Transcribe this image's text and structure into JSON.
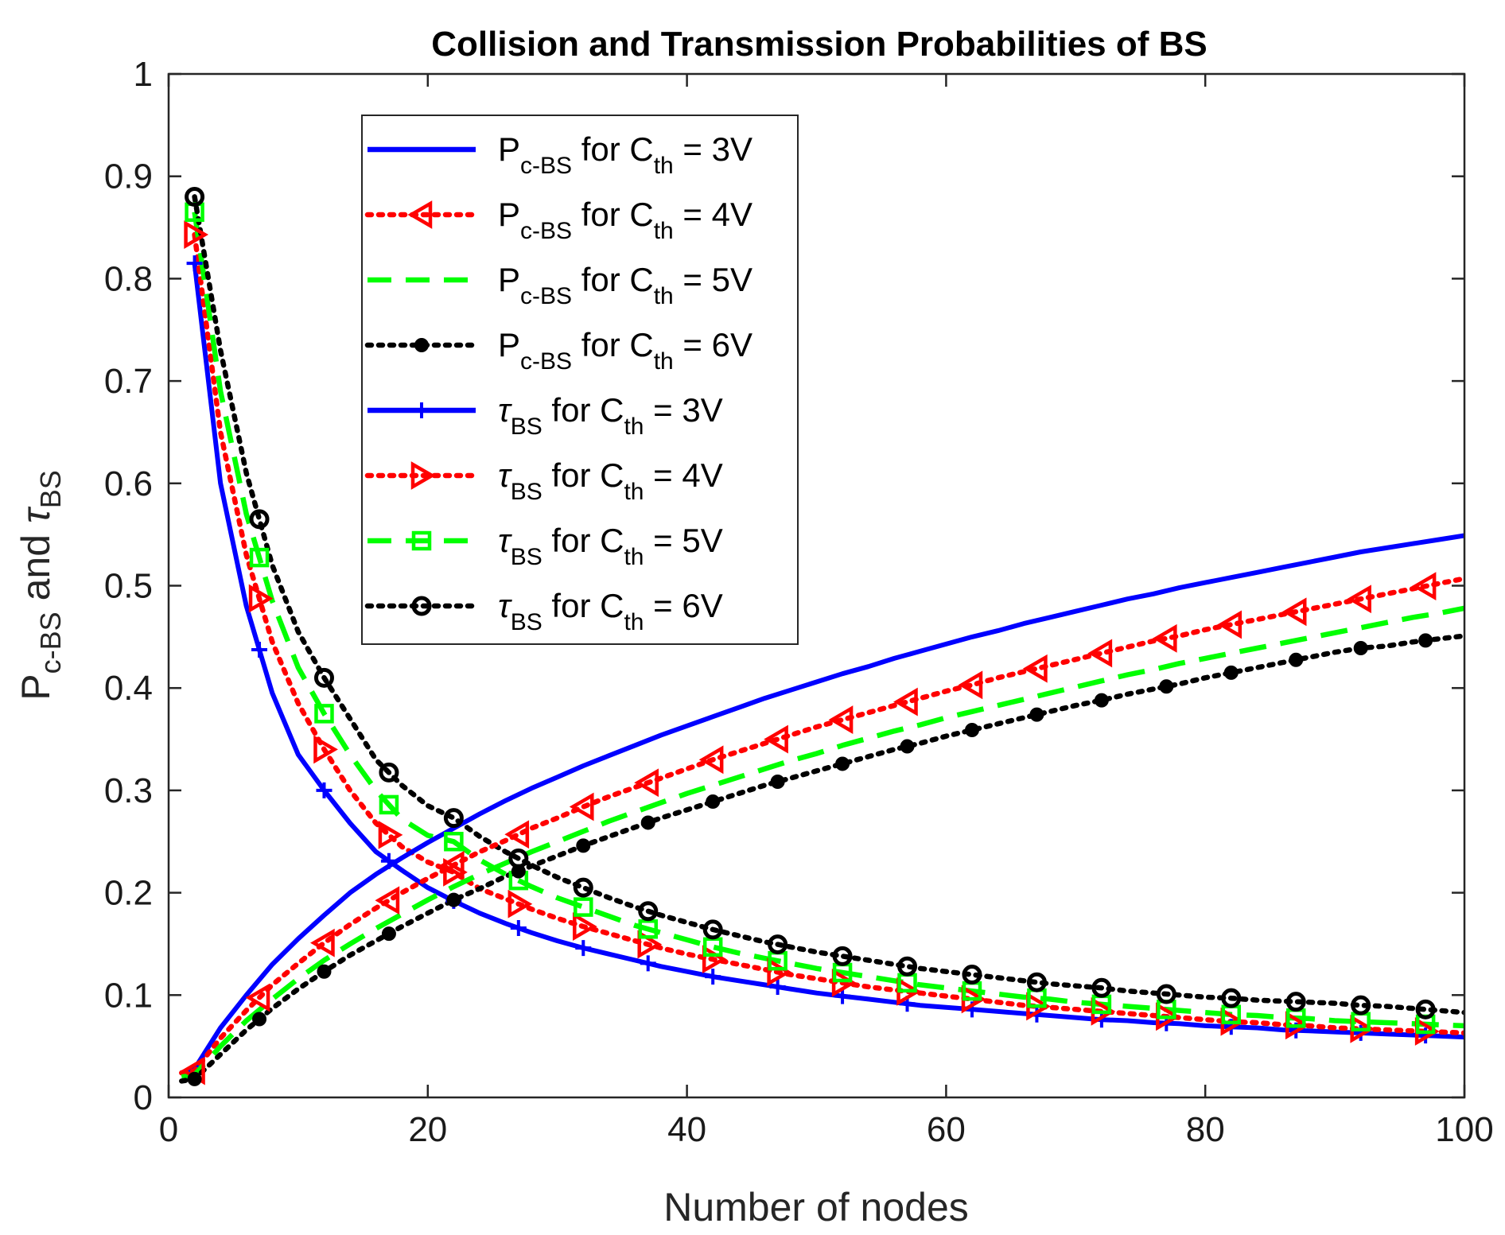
{
  "chart_data": {
    "type": "line",
    "title": "Collision and Transmission Probabilities of BS",
    "xlabel": "Number of nodes",
    "ylabel": {
      "p_main": "P",
      "p_sub": "c-BS",
      "conj": "and",
      "tau_main": "τ",
      "tau_sub": "BS"
    },
    "xlim": [
      0,
      100
    ],
    "ylim": [
      0,
      1
    ],
    "x_ticks": [
      0,
      20,
      40,
      60,
      80,
      100
    ],
    "y_ticks": [
      0,
      0.1,
      0.2,
      0.3,
      0.4,
      0.5,
      0.6,
      0.7,
      0.8,
      0.9,
      1
    ],
    "grid": false,
    "legend_position": "top-left inside",
    "x_markers": [
      2,
      7,
      12,
      17,
      22,
      27,
      32,
      37,
      42,
      47,
      52,
      57,
      62,
      67,
      72,
      77,
      82,
      87,
      92,
      97
    ],
    "series": [
      {
        "name_main": "P",
        "name_sub": "c-BS",
        "name_rest": " for C",
        "name_sub2": "th",
        "name_end": " = 3V",
        "color": "#0000ff",
        "line": "solid",
        "marker": "none",
        "x": [
          1,
          2,
          4,
          6,
          8,
          10,
          12,
          14,
          16,
          18,
          20,
          22,
          24,
          26,
          28,
          30,
          32,
          34,
          36,
          38,
          40,
          42,
          44,
          46,
          48,
          50,
          52,
          54,
          56,
          58,
          60,
          62,
          64,
          66,
          68,
          70,
          72,
          74,
          76,
          78,
          80,
          82,
          84,
          86,
          88,
          90,
          92,
          94,
          96,
          98,
          100
        ],
        "values": [
          0.024,
          0.028,
          0.068,
          0.1,
          0.13,
          0.155,
          0.178,
          0.2,
          0.218,
          0.234,
          0.249,
          0.263,
          0.277,
          0.29,
          0.302,
          0.313,
          0.324,
          0.334,
          0.344,
          0.354,
          0.363,
          0.372,
          0.381,
          0.39,
          0.398,
          0.406,
          0.414,
          0.421,
          0.429,
          0.436,
          0.443,
          0.45,
          0.456,
          0.463,
          0.469,
          0.475,
          0.481,
          0.487,
          0.492,
          0.498,
          0.503,
          0.508,
          0.513,
          0.518,
          0.523,
          0.528,
          0.533,
          0.537,
          0.541,
          0.545,
          0.549
        ]
      },
      {
        "name_main": "P",
        "name_sub": "c-BS",
        "name_rest": " for C",
        "name_sub2": "th",
        "name_end": " = 4V",
        "color": "#ff0000",
        "line": "dotted",
        "marker": "triangle-left",
        "x": [
          1,
          2,
          4,
          6,
          8,
          10,
          12,
          14,
          16,
          18,
          20,
          22,
          24,
          26,
          28,
          30,
          32,
          34,
          36,
          38,
          40,
          42,
          44,
          46,
          48,
          50,
          52,
          54,
          56,
          58,
          60,
          62,
          64,
          66,
          68,
          70,
          72,
          74,
          76,
          78,
          80,
          82,
          84,
          86,
          88,
          90,
          92,
          94,
          96,
          98,
          100
        ],
        "values": [
          0.024,
          0.026,
          0.058,
          0.085,
          0.11,
          0.131,
          0.151,
          0.169,
          0.185,
          0.2,
          0.214,
          0.227,
          0.24,
          0.251,
          0.263,
          0.273,
          0.284,
          0.294,
          0.303,
          0.312,
          0.321,
          0.33,
          0.338,
          0.346,
          0.354,
          0.362,
          0.369,
          0.376,
          0.383,
          0.39,
          0.397,
          0.403,
          0.41,
          0.416,
          0.422,
          0.428,
          0.434,
          0.44,
          0.446,
          0.451,
          0.457,
          0.462,
          0.467,
          0.472,
          0.477,
          0.482,
          0.487,
          0.492,
          0.497,
          0.502,
          0.507
        ]
      },
      {
        "name_main": "P",
        "name_sub": "c-BS",
        "name_rest": " for C",
        "name_sub2": "th",
        "name_end": " = 5V",
        "color": "#00ff00",
        "line": "dashed",
        "marker": "none",
        "x": [
          1,
          2,
          4,
          6,
          8,
          10,
          12,
          14,
          16,
          18,
          20,
          22,
          24,
          26,
          28,
          30,
          32,
          34,
          36,
          38,
          40,
          42,
          44,
          46,
          48,
          50,
          52,
          54,
          56,
          58,
          60,
          62,
          64,
          66,
          68,
          70,
          72,
          74,
          76,
          78,
          80,
          82,
          84,
          86,
          88,
          90,
          92,
          94,
          96,
          98,
          100
        ],
        "values": [
          0.02,
          0.022,
          0.05,
          0.075,
          0.096,
          0.116,
          0.134,
          0.15,
          0.165,
          0.179,
          0.193,
          0.206,
          0.218,
          0.229,
          0.24,
          0.25,
          0.26,
          0.27,
          0.279,
          0.288,
          0.297,
          0.305,
          0.313,
          0.321,
          0.329,
          0.336,
          0.344,
          0.351,
          0.358,
          0.364,
          0.371,
          0.377,
          0.383,
          0.389,
          0.395,
          0.401,
          0.407,
          0.413,
          0.418,
          0.424,
          0.429,
          0.434,
          0.439,
          0.444,
          0.449,
          0.454,
          0.459,
          0.464,
          0.469,
          0.473,
          0.478
        ]
      },
      {
        "name_main": "P",
        "name_sub": "c-BS",
        "name_rest": " for C",
        "name_sub2": "th",
        "name_end": " = 6V",
        "color": "#000000",
        "line": "dotted",
        "marker": "filled-circle",
        "x": [
          1,
          2,
          4,
          6,
          8,
          10,
          12,
          14,
          16,
          18,
          20,
          22,
          24,
          26,
          28,
          30,
          32,
          34,
          36,
          38,
          40,
          42,
          44,
          46,
          48,
          50,
          52,
          54,
          56,
          58,
          60,
          62,
          64,
          66,
          68,
          70,
          72,
          74,
          76,
          78,
          80,
          82,
          84,
          86,
          88,
          90,
          92,
          94,
          96,
          98,
          100
        ],
        "values": [
          0.016,
          0.018,
          0.042,
          0.066,
          0.087,
          0.106,
          0.123,
          0.139,
          0.153,
          0.167,
          0.18,
          0.193,
          0.204,
          0.216,
          0.226,
          0.236,
          0.246,
          0.255,
          0.264,
          0.273,
          0.281,
          0.289,
          0.297,
          0.305,
          0.312,
          0.319,
          0.326,
          0.333,
          0.34,
          0.346,
          0.353,
          0.359,
          0.365,
          0.371,
          0.377,
          0.383,
          0.388,
          0.394,
          0.399,
          0.404,
          0.41,
          0.415,
          0.42,
          0.425,
          0.43,
          0.435,
          0.439,
          0.441,
          0.445,
          0.448,
          0.451
        ]
      },
      {
        "name_main": "τ",
        "name_sub": "BS",
        "name_rest": " for C",
        "name_sub2": "th",
        "name_end": " = 3V",
        "color": "#0000ff",
        "line": "solid",
        "marker": "plus",
        "x": [
          2,
          4,
          6,
          8,
          10,
          12,
          14,
          16,
          18,
          20,
          22,
          24,
          26,
          28,
          30,
          32,
          34,
          36,
          38,
          40,
          42,
          44,
          46,
          48,
          50,
          52,
          54,
          56,
          58,
          60,
          62,
          64,
          66,
          68,
          70,
          72,
          74,
          76,
          78,
          80,
          82,
          84,
          86,
          88,
          90,
          92,
          94,
          96,
          98,
          100
        ],
        "values": [
          0.815,
          0.6,
          0.48,
          0.395,
          0.335,
          0.3,
          0.268,
          0.24,
          0.222,
          0.205,
          0.192,
          0.18,
          0.17,
          0.161,
          0.153,
          0.146,
          0.14,
          0.134,
          0.128,
          0.123,
          0.118,
          0.114,
          0.11,
          0.106,
          0.102,
          0.099,
          0.096,
          0.093,
          0.09,
          0.088,
          0.086,
          0.084,
          0.082,
          0.08,
          0.078,
          0.076,
          0.075,
          0.073,
          0.072,
          0.07,
          0.069,
          0.068,
          0.066,
          0.065,
          0.064,
          0.063,
          0.062,
          0.061,
          0.06,
          0.059
        ]
      },
      {
        "name_main": "τ",
        "name_sub": "BS",
        "name_rest": " for C",
        "name_sub2": "th",
        "name_end": " = 4V",
        "color": "#ff0000",
        "line": "dotted",
        "marker": "triangle-right",
        "x": [
          2,
          4,
          6,
          8,
          10,
          12,
          14,
          16,
          18,
          20,
          22,
          24,
          26,
          28,
          30,
          32,
          34,
          36,
          38,
          40,
          42,
          44,
          46,
          48,
          50,
          52,
          54,
          56,
          58,
          60,
          62,
          64,
          66,
          68,
          70,
          72,
          74,
          76,
          78,
          80,
          82,
          84,
          86,
          88,
          90,
          92,
          94,
          96,
          98,
          100
        ],
        "values": [
          0.843,
          0.65,
          0.53,
          0.445,
          0.385,
          0.34,
          0.3,
          0.268,
          0.245,
          0.23,
          0.22,
          0.204,
          0.194,
          0.184,
          0.175,
          0.167,
          0.16,
          0.153,
          0.146,
          0.14,
          0.135,
          0.13,
          0.125,
          0.12,
          0.116,
          0.112,
          0.108,
          0.105,
          0.102,
          0.099,
          0.096,
          0.093,
          0.09,
          0.088,
          0.086,
          0.084,
          0.082,
          0.08,
          0.078,
          0.076,
          0.074,
          0.073,
          0.071,
          0.07,
          0.068,
          0.067,
          0.066,
          0.065,
          0.064,
          0.063
        ]
      },
      {
        "name_main": "τ",
        "name_sub": "BS",
        "name_rest": " for C",
        "name_sub2": "th",
        "name_end": " = 5V",
        "color": "#00ff00",
        "line": "dashed",
        "marker": "square",
        "x": [
          2,
          4,
          6,
          8,
          10,
          12,
          14,
          16,
          18,
          20,
          22,
          24,
          26,
          28,
          30,
          32,
          34,
          36,
          38,
          40,
          42,
          44,
          46,
          48,
          50,
          52,
          54,
          56,
          58,
          60,
          62,
          64,
          66,
          68,
          70,
          72,
          74,
          76,
          78,
          80,
          82,
          84,
          86,
          88,
          90,
          92,
          94,
          96,
          98,
          100
        ],
        "values": [
          0.865,
          0.69,
          0.57,
          0.485,
          0.42,
          0.375,
          0.335,
          0.3,
          0.272,
          0.256,
          0.25,
          0.232,
          0.218,
          0.206,
          0.195,
          0.186,
          0.177,
          0.168,
          0.161,
          0.154,
          0.147,
          0.141,
          0.136,
          0.131,
          0.126,
          0.122,
          0.118,
          0.114,
          0.11,
          0.107,
          0.104,
          0.101,
          0.098,
          0.096,
          0.093,
          0.091,
          0.089,
          0.087,
          0.085,
          0.083,
          0.081,
          0.08,
          0.078,
          0.077,
          0.075,
          0.074,
          0.073,
          0.072,
          0.071,
          0.07
        ]
      },
      {
        "name_main": "τ",
        "name_sub": "BS",
        "name_rest": " for C",
        "name_sub2": "th",
        "name_end": " = 6V",
        "color": "#000000",
        "line": "dotted",
        "marker": "circle",
        "x": [
          2,
          4,
          6,
          8,
          10,
          12,
          14,
          16,
          18,
          20,
          22,
          24,
          26,
          28,
          30,
          32,
          34,
          36,
          38,
          40,
          42,
          44,
          46,
          48,
          50,
          52,
          54,
          56,
          58,
          60,
          62,
          64,
          66,
          68,
          70,
          72,
          74,
          76,
          78,
          80,
          82,
          84,
          86,
          88,
          90,
          92,
          94,
          96,
          98,
          100
        ],
        "values": [
          0.88,
          0.73,
          0.61,
          0.52,
          0.455,
          0.41,
          0.37,
          0.33,
          0.305,
          0.285,
          0.273,
          0.255,
          0.24,
          0.227,
          0.215,
          0.205,
          0.195,
          0.186,
          0.178,
          0.171,
          0.164,
          0.158,
          0.152,
          0.147,
          0.142,
          0.138,
          0.134,
          0.13,
          0.126,
          0.123,
          0.12,
          0.117,
          0.114,
          0.111,
          0.109,
          0.107,
          0.104,
          0.102,
          0.1,
          0.098,
          0.097,
          0.095,
          0.094,
          0.093,
          0.092,
          0.09,
          0.089,
          0.087,
          0.085,
          0.083
        ]
      }
    ]
  }
}
